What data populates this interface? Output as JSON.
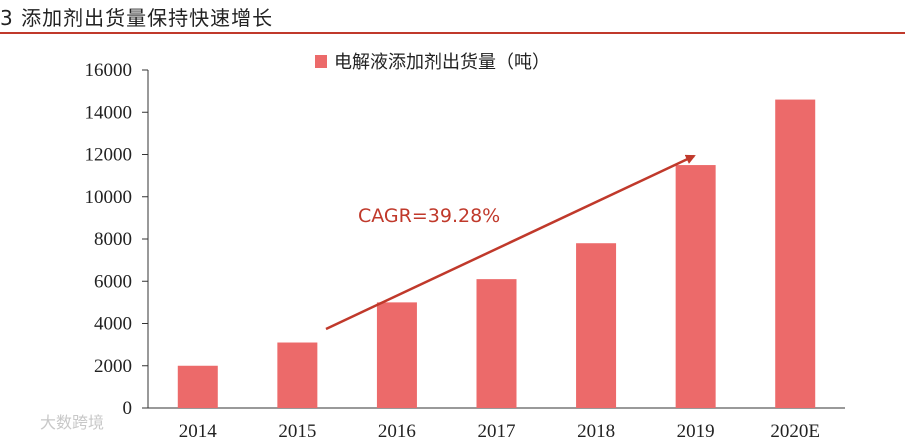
{
  "header": {
    "title": "3 添加剂出货量保持快速增长"
  },
  "chart_data": {
    "type": "bar",
    "categories": [
      "2014",
      "2015",
      "2016",
      "2017",
      "2018",
      "2019",
      "2020E"
    ],
    "series": [
      {
        "name": "电解液添加剂出货量（吨）",
        "values": [
          2000,
          3100,
          5000,
          6100,
          7800,
          11500,
          14600
        ]
      }
    ],
    "ylim": [
      0,
      16000
    ],
    "yticks": [
      0,
      2000,
      4000,
      6000,
      8000,
      10000,
      12000,
      14000,
      16000
    ],
    "legend_position": "top",
    "grid": false,
    "annotation": {
      "text": "CAGR=39.28%"
    },
    "colors": {
      "bar": "#ec6a6a",
      "arrow": "#c0392b",
      "header_rule": "#c0392b"
    }
  },
  "watermark": {
    "text": "大数跨境"
  }
}
